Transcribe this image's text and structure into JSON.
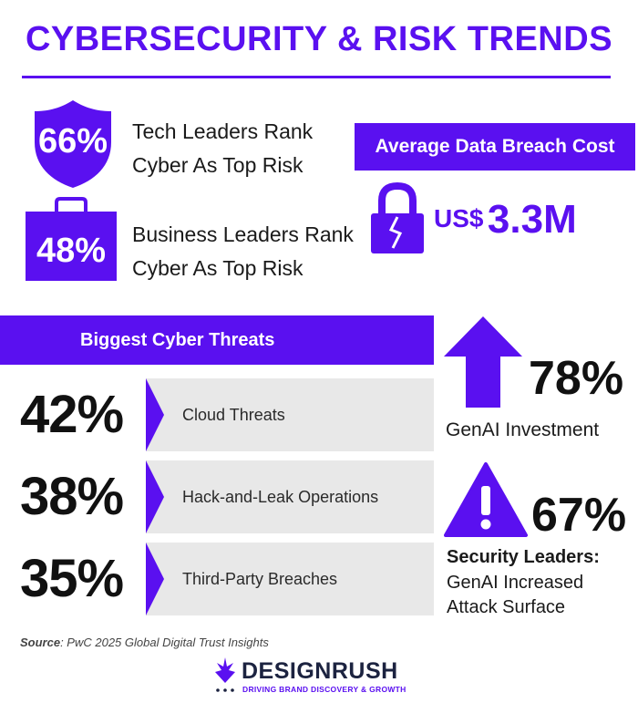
{
  "title": "CYBERSECURITY & RISK TRENDS",
  "leaders": {
    "tech": {
      "value": "66%",
      "line1": "Tech Leaders Rank",
      "line2": "Cyber As Top Risk",
      "icon": "shield-icon"
    },
    "business": {
      "value": "48%",
      "line1": "Business Leaders Rank",
      "line2": "Cyber As Top Risk",
      "icon": "briefcase-icon"
    }
  },
  "breach": {
    "label": "Average Data Breach Cost",
    "currency": "US$",
    "amount": "3.3M",
    "icon": "broken-lock-icon"
  },
  "threats": {
    "header": "Biggest Cyber Threats",
    "items": [
      {
        "value": "42%",
        "label": "Cloud Threats"
      },
      {
        "value": "38%",
        "label": "Hack-and-Leak Operations"
      },
      {
        "value": "35%",
        "label": "Third-Party Breaches"
      }
    ]
  },
  "genai": {
    "value": "78%",
    "label": "GenAI Investment",
    "icon": "up-arrow-icon"
  },
  "security": {
    "value": "67%",
    "line1": "Security Leaders:",
    "line2": "GenAI Increased",
    "line3": "Attack Surface",
    "icon": "warning-icon"
  },
  "source": {
    "prefix": "Source",
    "text": ": PwC 2025 Global Digital Trust Insights"
  },
  "brand": {
    "name": "DESIGNRUSH",
    "tagline": "DRIVING BRAND DISCOVERY & GROWTH"
  },
  "colors": {
    "accent": "#5a10f0",
    "bar": "#e8e8e8",
    "text": "#111111"
  }
}
